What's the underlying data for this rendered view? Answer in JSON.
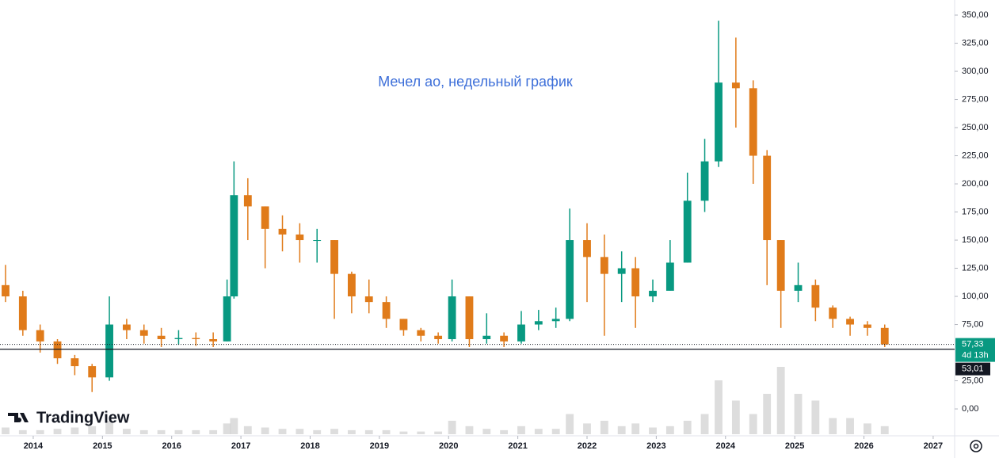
{
  "chart_data": {
    "type": "candlestick",
    "title": "Мечел ао, недельный график",
    "up_color": "#089981",
    "down_color": "#e07b1a",
    "volume_color": "#cfcfcf",
    "x": [
      2013.6,
      2013.85,
      2014.1,
      2014.35,
      2014.6,
      2014.85,
      2015.1,
      2015.35,
      2015.6,
      2015.85,
      2016.1,
      2016.35,
      2016.6,
      2016.8,
      2016.9,
      2017.1,
      2017.35,
      2017.6,
      2017.85,
      2018.1,
      2018.35,
      2018.6,
      2018.85,
      2019.1,
      2019.35,
      2019.6,
      2019.85,
      2020.05,
      2020.3,
      2020.55,
      2020.8,
      2021.05,
      2021.3,
      2021.55,
      2021.75,
      2022.0,
      2022.25,
      2022.5,
      2022.7,
      2022.95,
      2023.2,
      2023.45,
      2023.7,
      2023.9,
      2024.15,
      2024.4,
      2024.6,
      2024.8,
      2025.05,
      2025.3,
      2025.55,
      2025.8,
      2026.05,
      2026.3
    ],
    "open": [
      110,
      100,
      70,
      60,
      45,
      38,
      28,
      75,
      70,
      65,
      62,
      63,
      62,
      60,
      100,
      190,
      180,
      160,
      155,
      150,
      150,
      120,
      100,
      95,
      80,
      70,
      65,
      62,
      100,
      62,
      65,
      60,
      75,
      78,
      80,
      150,
      135,
      120,
      125,
      100,
      105,
      130,
      185,
      220,
      290,
      285,
      225,
      150,
      105,
      110,
      90,
      80,
      75,
      72
    ],
    "high": [
      128,
      105,
      75,
      62,
      48,
      40,
      100,
      80,
      75,
      72,
      70,
      68,
      68,
      115,
      220,
      205,
      180,
      172,
      165,
      160,
      150,
      122,
      115,
      100,
      80,
      72,
      68,
      115,
      100,
      85,
      68,
      87,
      88,
      90,
      178,
      165,
      155,
      140,
      135,
      115,
      150,
      210,
      240,
      345,
      330,
      292,
      230,
      150,
      130,
      115,
      92,
      82,
      78,
      75
    ],
    "low": [
      95,
      65,
      50,
      40,
      30,
      15,
      25,
      62,
      58,
      55,
      57,
      56,
      55,
      60,
      98,
      150,
      125,
      140,
      130,
      130,
      80,
      85,
      85,
      72,
      65,
      60,
      58,
      60,
      55,
      58,
      55,
      58,
      70,
      72,
      78,
      95,
      65,
      95,
      72,
      95,
      105,
      130,
      175,
      215,
      250,
      200,
      110,
      72,
      95,
      78,
      72,
      65,
      65,
      55
    ],
    "close": [
      100,
      70,
      60,
      45,
      38,
      28,
      75,
      70,
      65,
      62,
      63,
      62,
      60,
      100,
      190,
      180,
      160,
      155,
      150,
      150,
      120,
      100,
      95,
      80,
      70,
      65,
      62,
      100,
      62,
      65,
      60,
      75,
      78,
      80,
      150,
      135,
      120,
      125,
      100,
      105,
      130,
      185,
      220,
      290,
      285,
      225,
      150,
      105,
      110,
      90,
      80,
      75,
      72,
      57.33
    ],
    "volume": [
      5,
      3,
      3,
      4,
      5,
      6,
      10,
      4,
      3,
      3,
      3,
      3,
      3,
      8,
      12,
      6,
      5,
      4,
      4,
      3,
      4,
      3,
      3,
      3,
      2,
      2,
      2,
      10,
      6,
      4,
      3,
      6,
      4,
      4,
      15,
      8,
      10,
      6,
      8,
      5,
      6,
      10,
      15,
      40,
      25,
      15,
      30,
      50,
      30,
      25,
      12,
      12,
      8,
      6
    ],
    "xlim": [
      2013.52,
      2027.31
    ],
    "xticks": [
      2014,
      2015,
      2016,
      2017,
      2018,
      2019,
      2020,
      2021,
      2022,
      2023,
      2024,
      2025,
      2026,
      2027
    ],
    "ylim": [
      -22.5,
      363.4
    ],
    "yticks": [
      {
        "value": 0,
        "label": "0,00"
      },
      {
        "value": 25,
        "label": "25,00"
      },
      {
        "value": 75,
        "label": "75,00"
      },
      {
        "value": 100,
        "label": "100,00"
      },
      {
        "value": 125,
        "label": "125,00"
      },
      {
        "value": 150,
        "label": "150,00"
      },
      {
        "value": 175,
        "label": "175,00"
      },
      {
        "value": 200,
        "label": "200,00"
      },
      {
        "value": 225,
        "label": "225,00"
      },
      {
        "value": 250,
        "label": "250,00"
      },
      {
        "value": 275,
        "label": "275,00"
      },
      {
        "value": 300,
        "label": "300,00"
      },
      {
        "value": 325,
        "label": "325,00"
      },
      {
        "value": 350,
        "label": "350,00"
      }
    ],
    "last_price": {
      "value": 57.33,
      "label": "57,33",
      "countdown": "4d 13h"
    },
    "level": {
      "value": 53.01,
      "label": "53,01"
    }
  },
  "watermark": "TradingView"
}
